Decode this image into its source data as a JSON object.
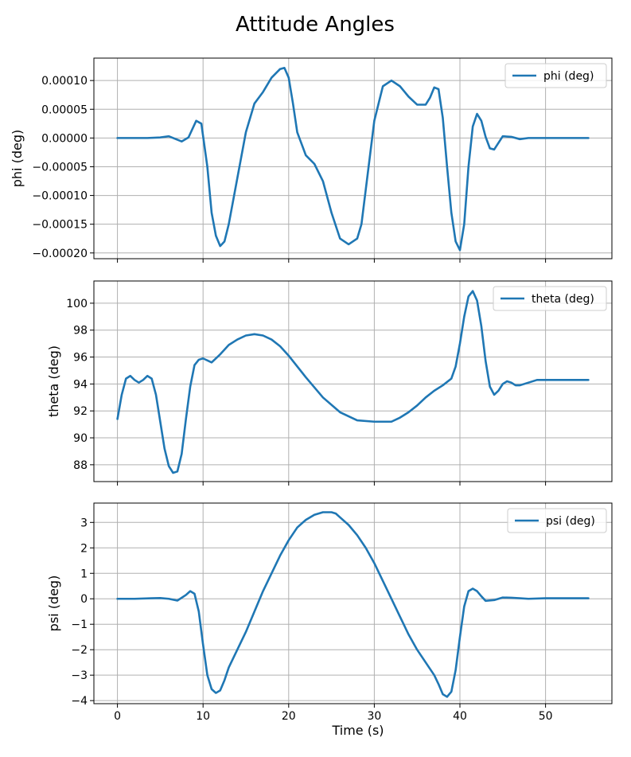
{
  "chart_data": {
    "type": "line",
    "title": "Attitude Angles",
    "xlabel": "Time (s)",
    "xlim": [
      -2.75,
      57.75
    ],
    "xticks": [
      0,
      10,
      20,
      30,
      40,
      50
    ],
    "xtick_labels": [
      "0",
      "10",
      "20",
      "30",
      "40",
      "50"
    ],
    "grid": true,
    "line_color": "#1f77b4",
    "subplots": [
      {
        "ylabel": "phi (deg)",
        "legend": "phi (deg)",
        "legend_position": "top-right",
        "ylim": [
          -0.00021,
          0.000139
        ],
        "yticks": [
          0.0001,
          5e-05,
          0,
          -5e-05,
          -0.0001,
          -0.00015,
          -0.0002
        ],
        "ytick_labels": [
          "0.00010",
          "0.00005",
          "0.00000",
          "−0.00005",
          "−0.00010",
          "−0.00015",
          "−0.00020"
        ],
        "x": [
          0,
          2,
          3.5,
          5,
          6,
          7.5,
          8.3,
          9.2,
          9.8,
          10.5,
          11,
          11.5,
          12,
          12.5,
          13,
          14,
          15,
          16,
          17,
          18,
          19,
          19.5,
          20,
          20.5,
          21,
          22,
          23,
          24,
          25,
          26,
          27,
          28,
          28.5,
          29,
          29.5,
          30,
          31,
          32,
          33,
          34,
          35,
          36,
          36.5,
          37,
          37.5,
          38,
          38.5,
          39,
          39.5,
          40,
          40.5,
          41,
          41.5,
          42,
          42.5,
          43,
          43.5,
          44,
          45,
          46,
          47,
          48,
          50,
          52,
          55
        ],
        "y": [
          0,
          0,
          0,
          1e-06,
          3e-06,
          -6e-06,
          1e-06,
          3e-05,
          2.5e-05,
          -5e-05,
          -0.00013,
          -0.00017,
          -0.000188,
          -0.00018,
          -0.00015,
          -7e-05,
          1e-05,
          6e-05,
          8e-05,
          0.000105,
          0.00012,
          0.000122,
          0.000105,
          6e-05,
          1e-05,
          -3e-05,
          -4.5e-05,
          -7.5e-05,
          -0.00013,
          -0.000175,
          -0.000185,
          -0.000175,
          -0.00015,
          -9e-05,
          -3e-05,
          3e-05,
          9e-05,
          0.0001,
          9e-05,
          7.2e-05,
          5.8e-05,
          5.8e-05,
          7e-05,
          8.8e-05,
          8.5e-05,
          3.5e-05,
          -5e-05,
          -0.00013,
          -0.00018,
          -0.000195,
          -0.00015,
          -5e-05,
          2e-05,
          4.2e-05,
          3e-05,
          2e-06,
          -1.8e-05,
          -2e-05,
          3e-06,
          2e-06,
          -2e-06,
          0,
          0,
          0,
          0
        ]
      },
      {
        "ylabel": "theta (deg)",
        "legend": "theta (deg)",
        "legend_position": "top-right",
        "ylim": [
          86.75,
          101.65
        ],
        "yticks": [
          100,
          98,
          96,
          94,
          92,
          90,
          88
        ],
        "ytick_labels": [
          "100",
          "98",
          "96",
          "94",
          "92",
          "90",
          "88"
        ],
        "x": [
          0,
          0.5,
          1,
          1.5,
          2,
          2.5,
          3,
          3.5,
          4,
          4.5,
          5,
          5.5,
          6,
          6.5,
          7,
          7.5,
          8,
          8.5,
          9,
          9.5,
          10,
          11,
          12,
          13,
          14,
          15,
          16,
          17,
          18,
          19,
          20,
          22,
          24,
          26,
          28,
          30,
          32,
          33,
          34,
          35,
          36,
          37,
          38,
          39,
          39.5,
          40,
          40.5,
          41,
          41.5,
          42,
          42.5,
          43,
          43.5,
          44,
          44.5,
          45,
          45.5,
          46,
          46.5,
          47,
          48,
          49,
          50,
          52,
          55
        ],
        "y": [
          91.4,
          93.2,
          94.4,
          94.6,
          94.3,
          94.1,
          94.3,
          94.6,
          94.4,
          93.2,
          91.2,
          89.2,
          87.9,
          87.4,
          87.5,
          88.8,
          91.4,
          93.8,
          95.4,
          95.8,
          95.9,
          95.6,
          96.2,
          96.9,
          97.3,
          97.6,
          97.7,
          97.6,
          97.3,
          96.8,
          96.1,
          94.5,
          93.0,
          91.9,
          91.3,
          91.2,
          91.2,
          91.5,
          91.9,
          92.4,
          93.0,
          93.5,
          93.9,
          94.4,
          95.3,
          97.0,
          99.0,
          100.5,
          100.9,
          100.2,
          98.3,
          95.7,
          93.8,
          93.2,
          93.5,
          94.0,
          94.2,
          94.1,
          93.9,
          93.9,
          94.1,
          94.3,
          94.3,
          94.3,
          94.3
        ]
      },
      {
        "ylabel": "psi (deg)",
        "legend": "psi (deg)",
        "legend_position": "top-right",
        "ylim": [
          -4.12,
          3.76
        ],
        "yticks": [
          3,
          2,
          1,
          0,
          -1,
          -2,
          -3,
          -4
        ],
        "ytick_labels": [
          "3",
          "2",
          "1",
          "0",
          "−1",
          "−2",
          "−3",
          "−4"
        ],
        "x": [
          0,
          2,
          4,
          5,
          6,
          7,
          8,
          8.5,
          9,
          9.5,
          10,
          10.5,
          11,
          11.5,
          12,
          12.5,
          13,
          14,
          15,
          16,
          17,
          18,
          19,
          20,
          21,
          22,
          23,
          24,
          25,
          25.5,
          26,
          27,
          28,
          29,
          30,
          31,
          32,
          33,
          34,
          35,
          36,
          37,
          37.5,
          38,
          38.5,
          39,
          39.5,
          40,
          40.5,
          41,
          41.5,
          42,
          42.5,
          43,
          44,
          45,
          46,
          47,
          48,
          50,
          52,
          55
        ],
        "y": [
          0,
          0,
          0.02,
          0.03,
          0,
          -0.07,
          0.15,
          0.3,
          0.2,
          -0.5,
          -1.8,
          -3.0,
          -3.55,
          -3.7,
          -3.6,
          -3.2,
          -2.7,
          -2.0,
          -1.3,
          -0.5,
          0.3,
          1.0,
          1.7,
          2.3,
          2.8,
          3.1,
          3.3,
          3.4,
          3.4,
          3.35,
          3.2,
          2.9,
          2.5,
          2.0,
          1.4,
          0.7,
          0,
          -0.7,
          -1.4,
          -2.0,
          -2.5,
          -3.0,
          -3.35,
          -3.75,
          -3.85,
          -3.65,
          -2.8,
          -1.5,
          -0.3,
          0.3,
          0.4,
          0.3,
          0.1,
          -0.08,
          -0.05,
          0.05,
          0.04,
          0.02,
          0,
          0.02,
          0.02,
          0.02
        ]
      }
    ]
  }
}
